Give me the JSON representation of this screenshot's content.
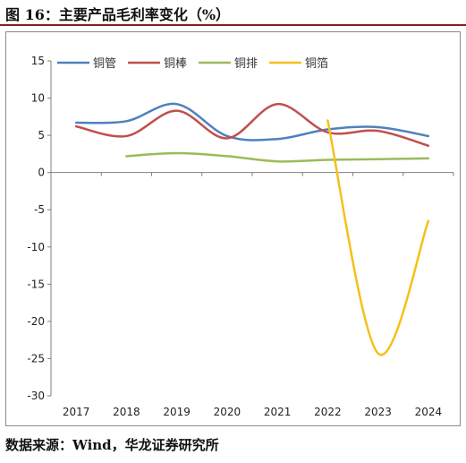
{
  "figure": {
    "title": "图 16：主要产品毛利率变化（%）",
    "source": "数据来源：Wind，华龙证券研究所"
  },
  "chart_data": {
    "type": "line",
    "categories": [
      "2017",
      "2018",
      "2019",
      "2020",
      "2021",
      "2022",
      "2023",
      "2024"
    ],
    "ylim": [
      -30,
      15
    ],
    "yticks": [
      15,
      10,
      5,
      0,
      -5,
      -10,
      -15,
      -20,
      -25,
      -30
    ],
    "grid": false,
    "legend": "top",
    "series": [
      {
        "name": "铜管",
        "color": "#4f81bd",
        "values": [
          6.7,
          6.9,
          9.2,
          4.9,
          4.5,
          5.8,
          6.1,
          4.9
        ]
      },
      {
        "name": "铜棒",
        "color": "#c0504d",
        "values": [
          6.2,
          4.9,
          8.3,
          4.6,
          9.2,
          5.4,
          5.6,
          3.6
        ]
      },
      {
        "name": "铜排",
        "color": "#9bbb59",
        "values": [
          null,
          2.2,
          2.6,
          2.2,
          1.5,
          1.7,
          1.8,
          1.9
        ]
      },
      {
        "name": "铜箔",
        "color": "#f5c118",
        "values": [
          null,
          null,
          null,
          null,
          null,
          7.0,
          -24.3,
          -6.5
        ]
      }
    ]
  }
}
